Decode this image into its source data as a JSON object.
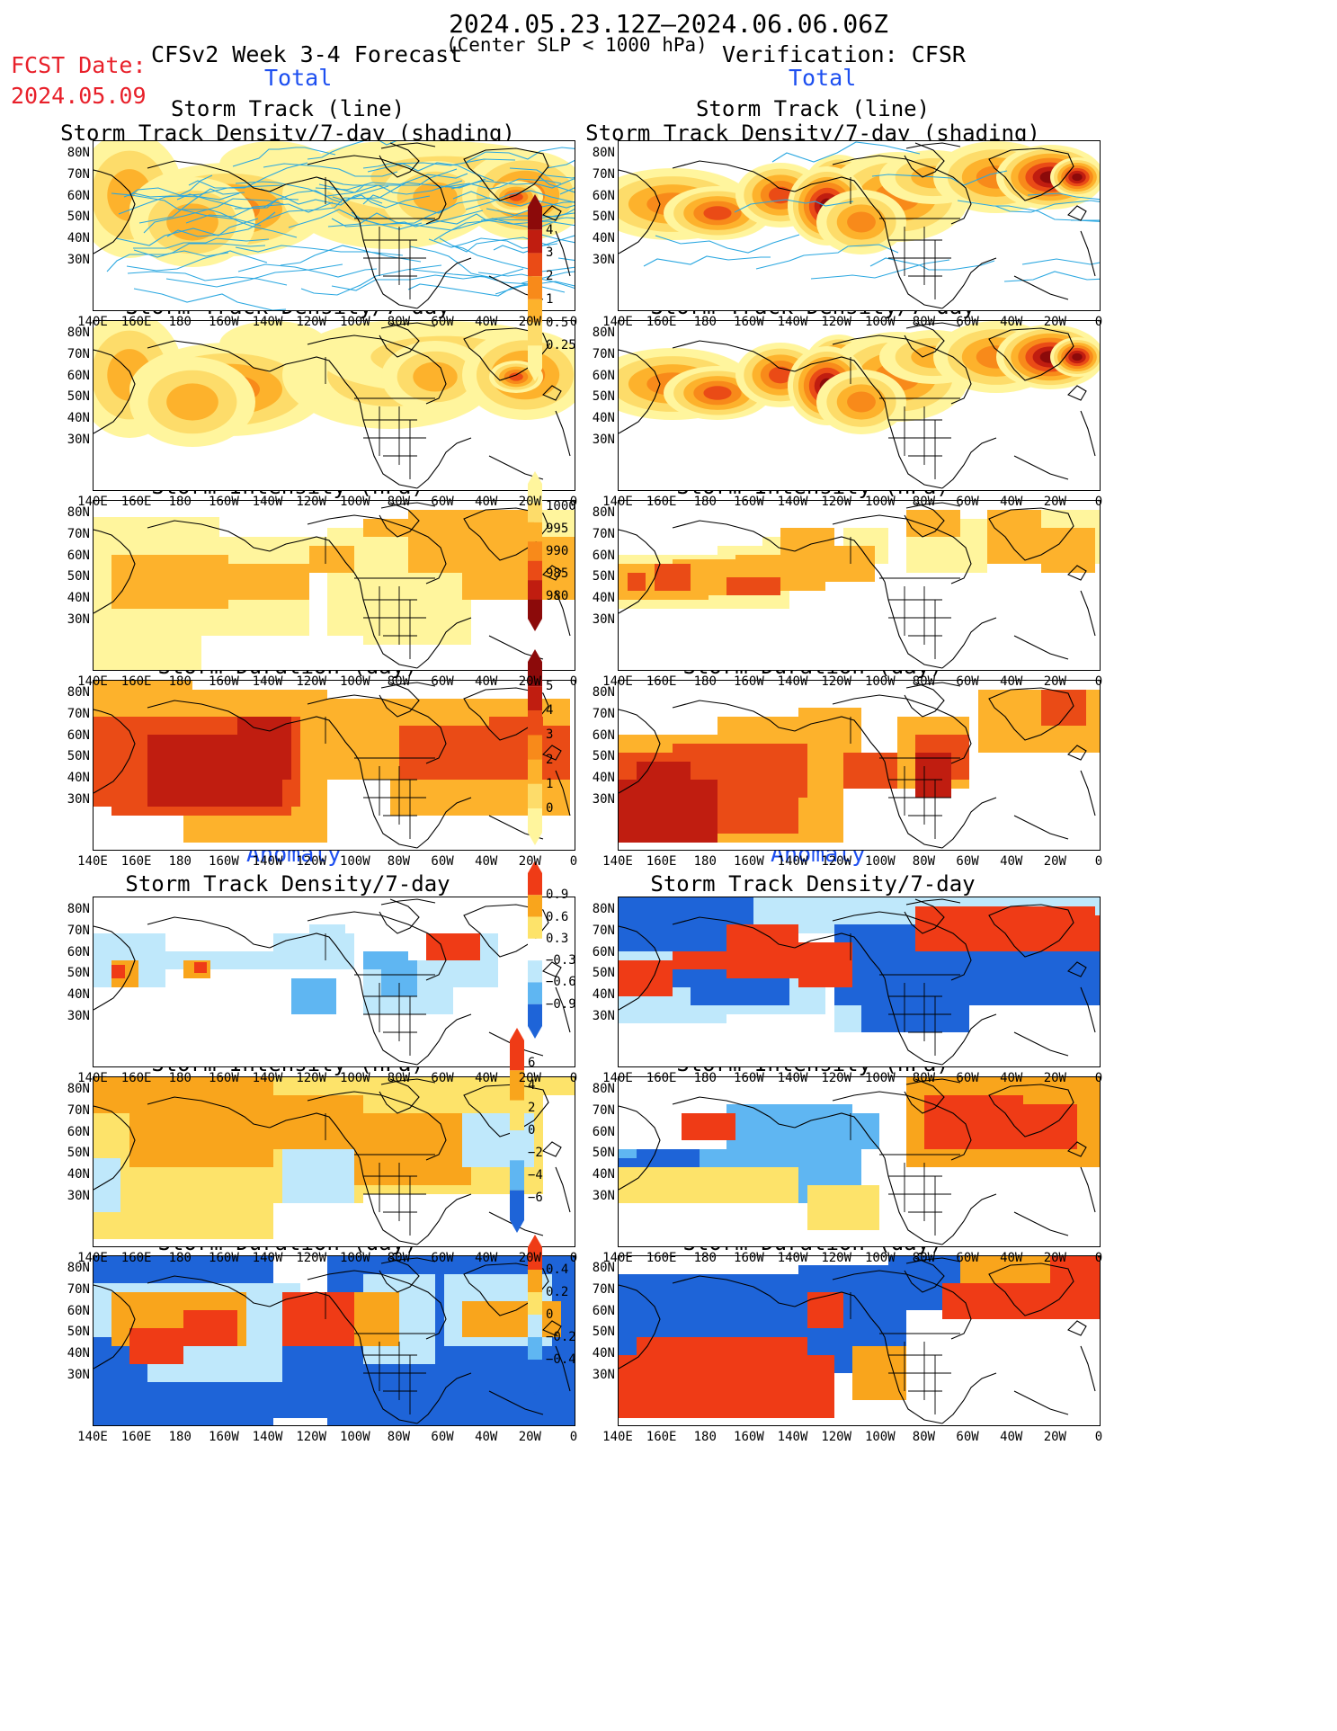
{
  "header": {
    "date_range": "2024.05.23.12Z–2024.06.06.06Z",
    "fcst_label": "FCST Date:",
    "fcst_date": "2024.05.09",
    "left_title": "CFSv2 Week 3-4 Forecast",
    "center_note": "(Center SLP < 1000 hPa)",
    "right_title": "Verification: CFSR"
  },
  "sections": {
    "total": "Total",
    "anomaly": "Anomaly"
  },
  "panel_titles": {
    "track_line": "Storm Track (line)",
    "track_density_shading": "Storm Track Density/7-day (shading)",
    "track_density": "Storm Track Density/7-day",
    "intensity": "Storm Intensity (hPa)",
    "duration": "Storm Duration (day)"
  },
  "axes": {
    "lat_labels": [
      "80N",
      "70N",
      "60N",
      "50N",
      "40N",
      "30N"
    ],
    "lon_labels": [
      "140E",
      "160E",
      "180",
      "160W",
      "140W",
      "120W",
      "100W",
      "80W",
      "60W",
      "40W",
      "20W",
      "0"
    ]
  },
  "colorbars": {
    "density": [
      "4",
      "3",
      "2",
      "1",
      "0.5",
      "0.25"
    ],
    "intensity": [
      "1000",
      "995",
      "990",
      "985",
      "980"
    ],
    "duration": [
      "5",
      "4",
      "3",
      "2",
      "1",
      "0"
    ],
    "density_anom": [
      "0.9",
      "0.6",
      "0.3",
      "−0.3",
      "−0.6",
      "−0.9"
    ],
    "intensity_anom": [
      "6",
      "4",
      "2",
      "0",
      "−2",
      "−4",
      "−6"
    ],
    "duration_anom": [
      "0.4",
      "0.2",
      "0",
      "−0.2",
      "−0.4"
    ]
  },
  "colors": {
    "title_red": "#e8202a",
    "section_blue": "#1d4ff0",
    "track_line": "#2aa7e0",
    "density_scale": [
      "#fff59d",
      "#fddc6a",
      "#fdb22c",
      "#f88a1a",
      "#ea4b16",
      "#c01d10",
      "#8c0a0a"
    ],
    "anomaly_pos": [
      "#fde36a",
      "#f9a51c",
      "#ef3b16"
    ],
    "anomaly_neg": [
      "#bfe8fb",
      "#5fb6f2",
      "#1e64d8"
    ]
  }
}
